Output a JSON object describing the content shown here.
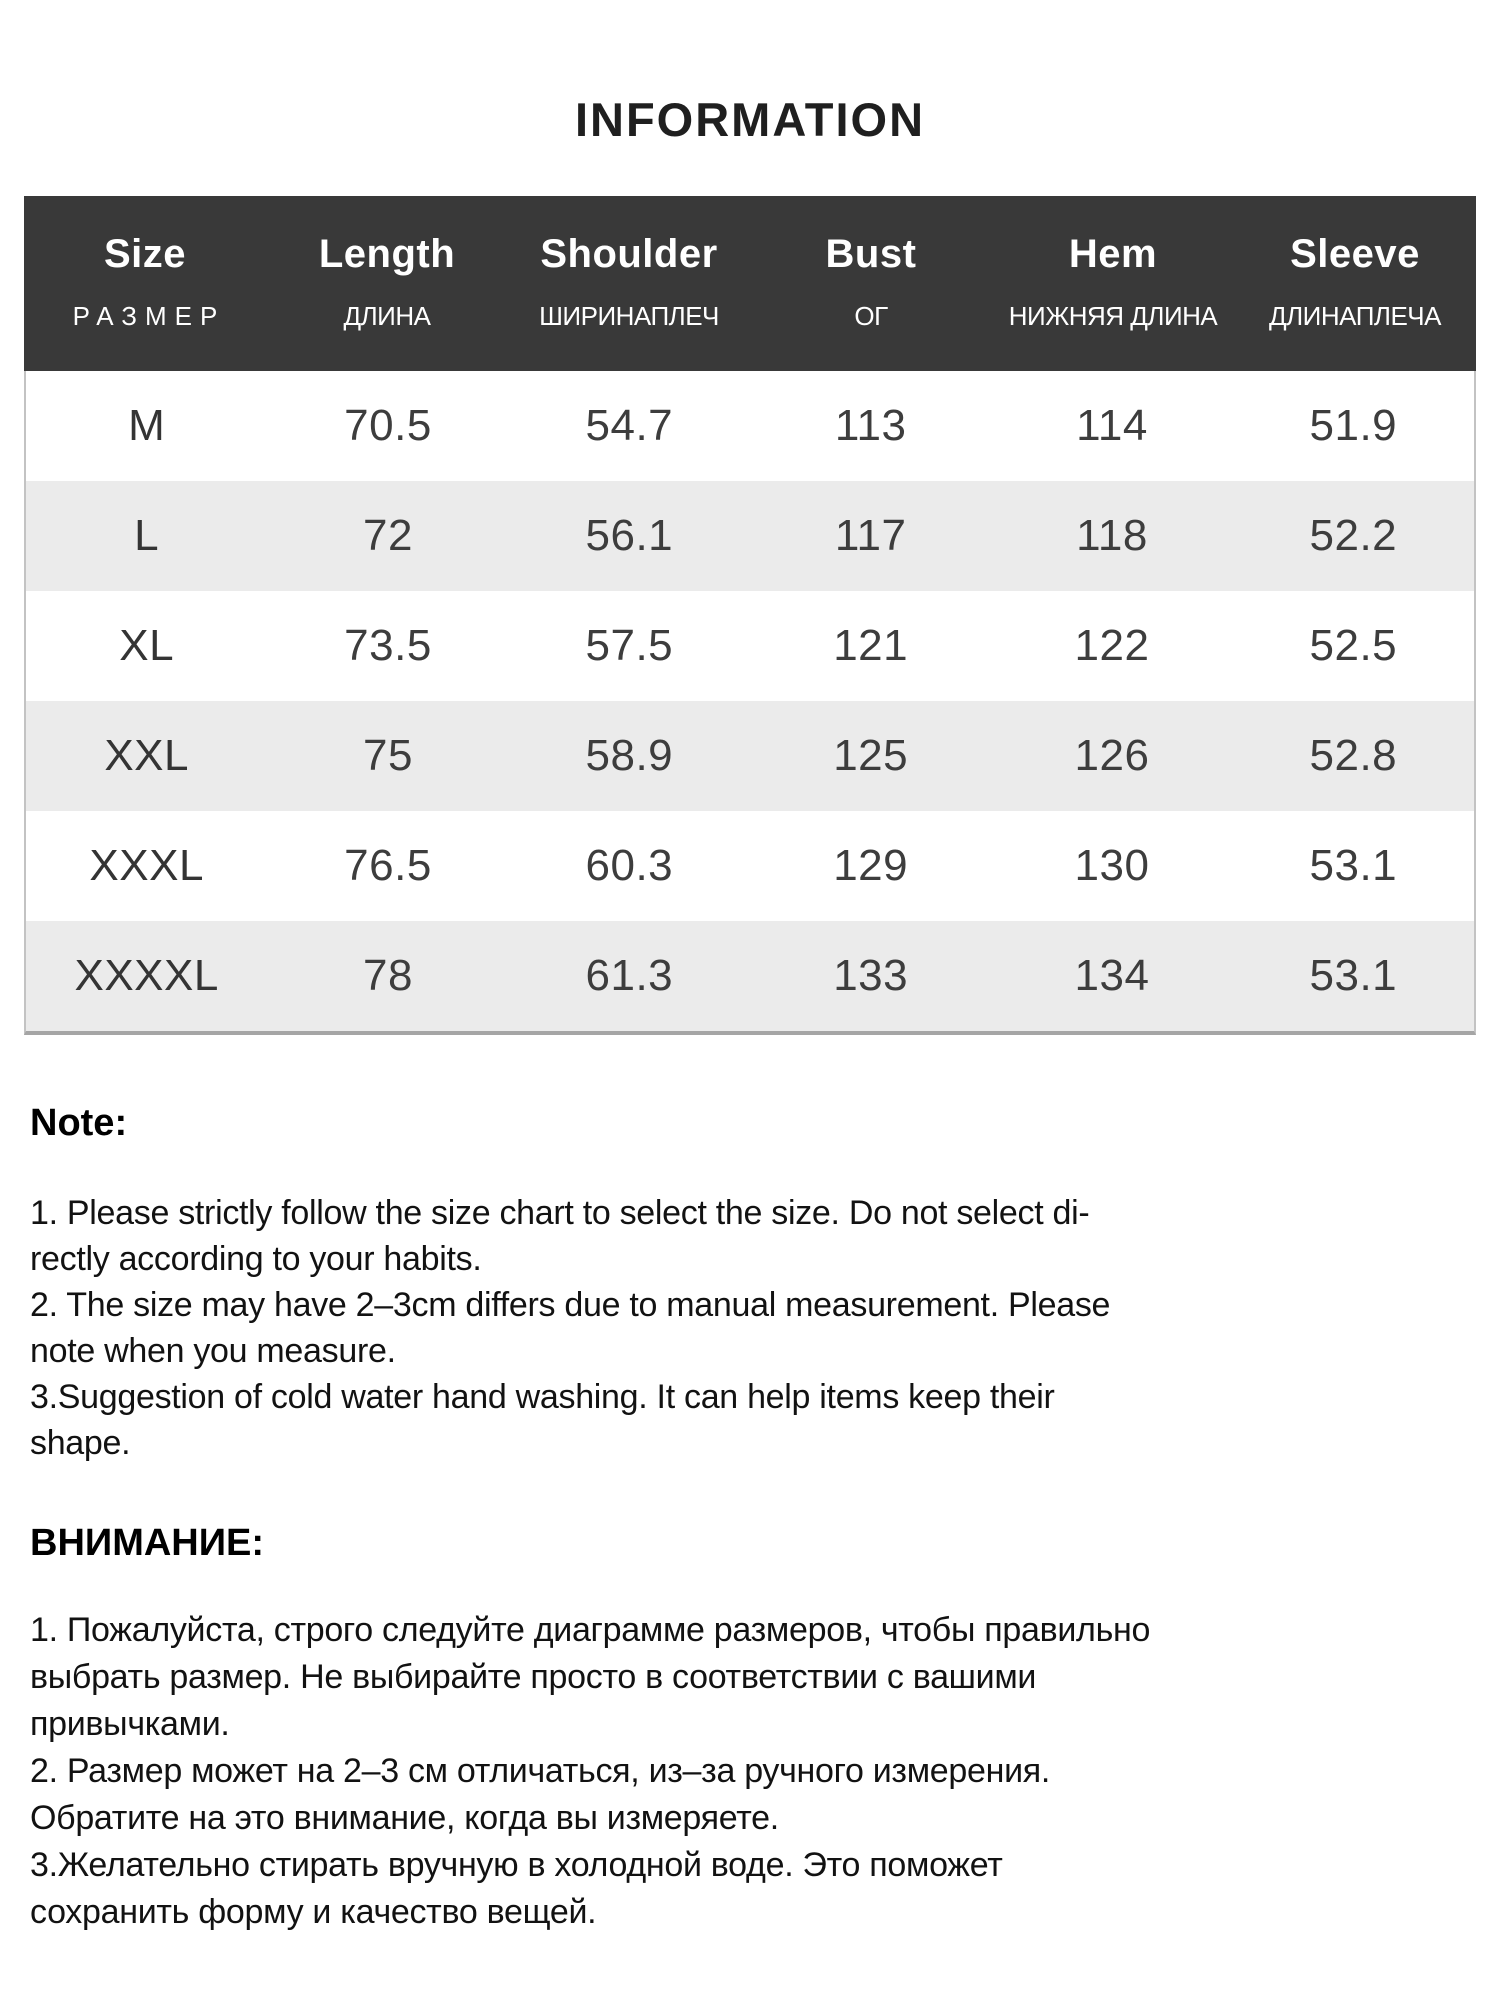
{
  "page": {
    "title": "INFORMATION"
  },
  "table": {
    "columns": [
      {
        "en": "Size",
        "ru": "РАЗМЕР"
      },
      {
        "en": "Length",
        "ru": "ДЛИНА"
      },
      {
        "en": "Shoulder",
        "ru": "ШИРИНАПЛЕЧ"
      },
      {
        "en": "Bust",
        "ru": "ОГ"
      },
      {
        "en": "Hem",
        "ru": "НИЖНЯЯ ДЛИНА"
      },
      {
        "en": "Sleeve",
        "ru": "ДЛИНАПЛЕЧА"
      }
    ],
    "rows": [
      [
        "M",
        "70.5",
        "54.7",
        "113",
        "114",
        "51.9"
      ],
      [
        "L",
        "72",
        "56.1",
        "117",
        "118",
        "52.2"
      ],
      [
        "XL",
        "73.5",
        "57.5",
        "121",
        "122",
        "52.5"
      ],
      [
        "XXL",
        "75",
        "58.9",
        "125",
        "126",
        "52.8"
      ],
      [
        "XXXL",
        "76.5",
        "60.3",
        "129",
        "130",
        "53.1"
      ],
      [
        "XXXXL",
        "78",
        "61.3",
        "133",
        "134",
        "53.1"
      ]
    ],
    "colors": {
      "header_bg": "#393939",
      "header_text": "#ffffff",
      "row_bg": "#ffffff",
      "row_alt_bg": "#ebebeb",
      "border": "#a5a5a5"
    }
  },
  "note": {
    "heading": "Note:",
    "items": [
      "1. Please strictly follow the size chart  to select the size. Do not select di-\nrectly according to your habits.",
      "2. The size may have 2–3cm differs due to manual measurement. Please\nnote when you measure.",
      "3.Suggestion of cold water hand washing. It can help items keep their\nshape."
    ]
  },
  "attention": {
    "heading": "ВНИМАНИЕ:",
    "items": [
      "1. Пожалуйста, строго следуйте диаграмме размеров, чтобы правильно\nвыбрать размер. Не выбирайте просто в соответствии с вашими\nпривычками.",
      "2. Размер может на 2–3 см отличаться, из–за ручного измерения.\nОбратите на это внимание, когда вы измеряете.",
      "3.Желательно стирать вручную в холодной воде. Это поможет\nсохранить форму и качество вещей."
    ]
  }
}
